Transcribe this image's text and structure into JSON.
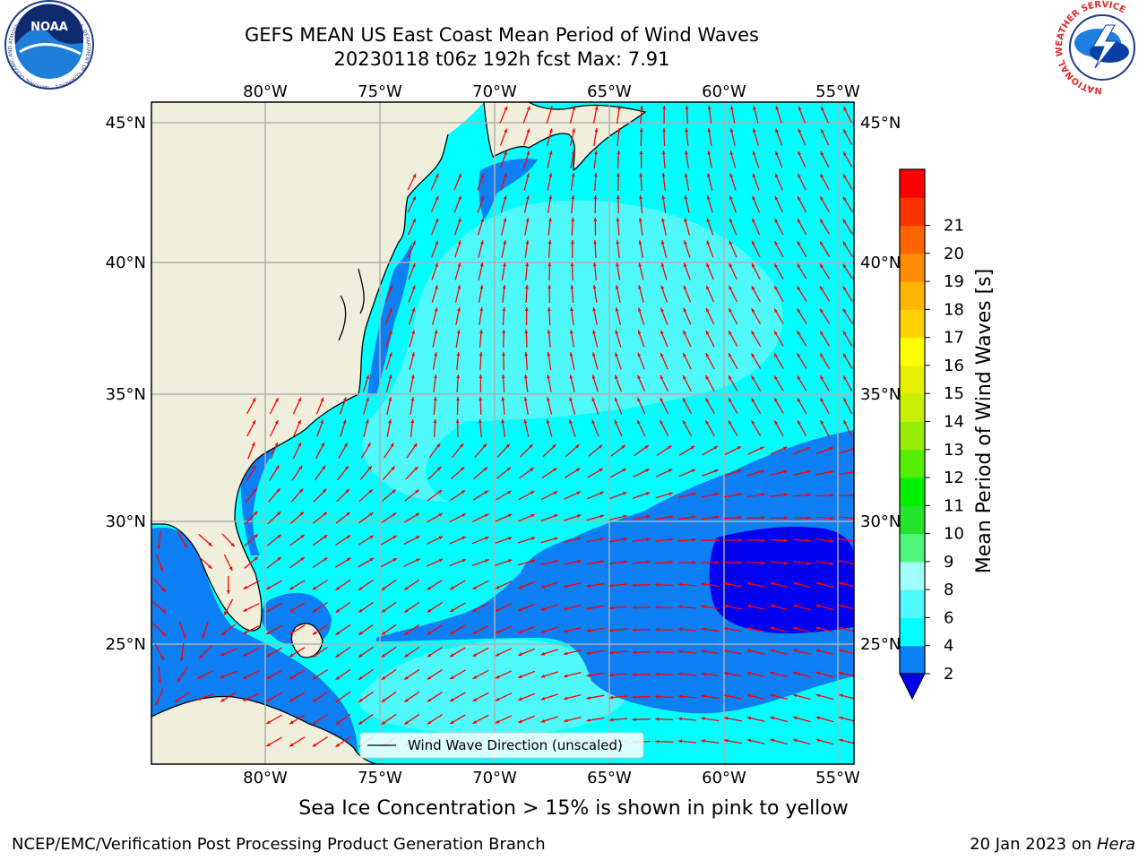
{
  "header": {
    "title_line1": "GEFS MEAN US East Coast Mean Period of Wind Waves",
    "title_line2": "20230118 t06z 192h fcst   Max: 7.91"
  },
  "logos": {
    "noaa_text": "NOAA",
    "noaa_ring_text": "NATIONAL OCEANIC AND ATMOSPHERIC ADMINISTRATION · U.S. DEPARTMENT OF COMMERCE",
    "nws_ring_text": "NATIONAL WEATHER SERVICE"
  },
  "map": {
    "lon_labels": [
      "80°W",
      "75°W",
      "70°W",
      "65°W",
      "60°W",
      "55°W"
    ],
    "lat_labels": [
      "45°N",
      "40°N",
      "35°N",
      "30°N",
      "25°N"
    ],
    "legend_label": "Wind Wave Direction (unscaled)",
    "colors": {
      "land": "#efefdb",
      "level_2_4": "#0c7ff5",
      "level_lt2": "#0000f0",
      "level_4_6": "#00ffff",
      "level_6_8": "#4ff9f9",
      "arrow": "#ff0000",
      "grid": "#b0b0b0"
    }
  },
  "colorbar": {
    "label": "Mean Period of Wind Waves [s]",
    "ticks": [
      "2",
      "4",
      "6",
      "8",
      "9",
      "10",
      "11",
      "12",
      "13",
      "14",
      "15",
      "16",
      "17",
      "18",
      "19",
      "20",
      "21"
    ],
    "colors": [
      "#0c7ff5",
      "#00ffff",
      "#4ff9f9",
      "#a0fffa",
      "#4df77a",
      "#23e32c",
      "#00f000",
      "#55ee00",
      "#96ed00",
      "#c8f000",
      "#e5f000",
      "#ffff00",
      "#ffd200",
      "#ffb400",
      "#ff8c00",
      "#ff6400",
      "#ff3200",
      "#ff0000"
    ],
    "under_color": "#0000f0"
  },
  "notes": {
    "ice": "Sea Ice Concentration > 15% is shown in pink to yellow",
    "footer_left": "NCEP/EMC/Verification Post Processing Product Generation Branch",
    "footer_date": "20 Jan 2023 on ",
    "footer_machine": "Hera"
  }
}
